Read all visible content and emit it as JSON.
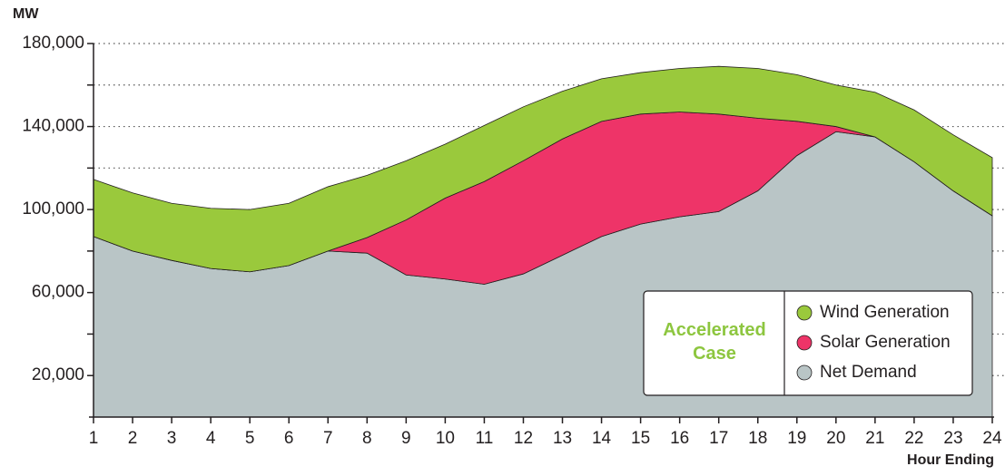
{
  "chart_data": {
    "type": "stacked_area",
    "y_label": "MW",
    "x_label": "Hour Ending",
    "legend_title": "Accelerated Case",
    "x": [
      1,
      2,
      3,
      4,
      5,
      6,
      7,
      8,
      9,
      10,
      11,
      12,
      13,
      14,
      15,
      16,
      17,
      18,
      19,
      20,
      21,
      22,
      23,
      24
    ],
    "xlim": [
      1,
      24
    ],
    "series": [
      {
        "name": "Wind Generation",
        "color": "#9ac93c",
        "values": [
          27500,
          28000,
          27500,
          29000,
          30000,
          30000,
          31000,
          30000,
          28500,
          26000,
          27000,
          26000,
          23000,
          20500,
          20000,
          21000,
          23000,
          24000,
          22500,
          20000,
          21500,
          25000,
          27000,
          28000
        ]
      },
      {
        "name": "Solar Generation",
        "color": "#ee3468",
        "values": [
          0,
          0,
          0,
          0,
          0,
          0,
          0,
          7500,
          26500,
          39000,
          49500,
          54500,
          56000,
          55500,
          53000,
          50500,
          47000,
          35000,
          16500,
          2500,
          0,
          0,
          0,
          0
        ]
      },
      {
        "name": "Net Demand",
        "color": "#b9c5c6",
        "values": [
          87000,
          80000,
          75500,
          71600,
          70000,
          73000,
          80000,
          79000,
          68500,
          66500,
          64000,
          69000,
          78000,
          87000,
          93000,
          96500,
          99000,
          109000,
          126000,
          137500,
          135000,
          123000,
          109000,
          97000
        ]
      }
    ],
    "ylim": [
      0,
      180000
    ],
    "yticks": [
      {
        "value": 20000,
        "label": "20,000"
      },
      {
        "value": 60000,
        "label": "60,000"
      },
      {
        "value": 100000,
        "label": "100,000"
      },
      {
        "value": 140000,
        "label": "140,000"
      },
      {
        "value": 180000,
        "label": "180,000"
      }
    ],
    "minor_yticks": [
      40000,
      80000,
      120000,
      160000
    ],
    "grid": true
  }
}
